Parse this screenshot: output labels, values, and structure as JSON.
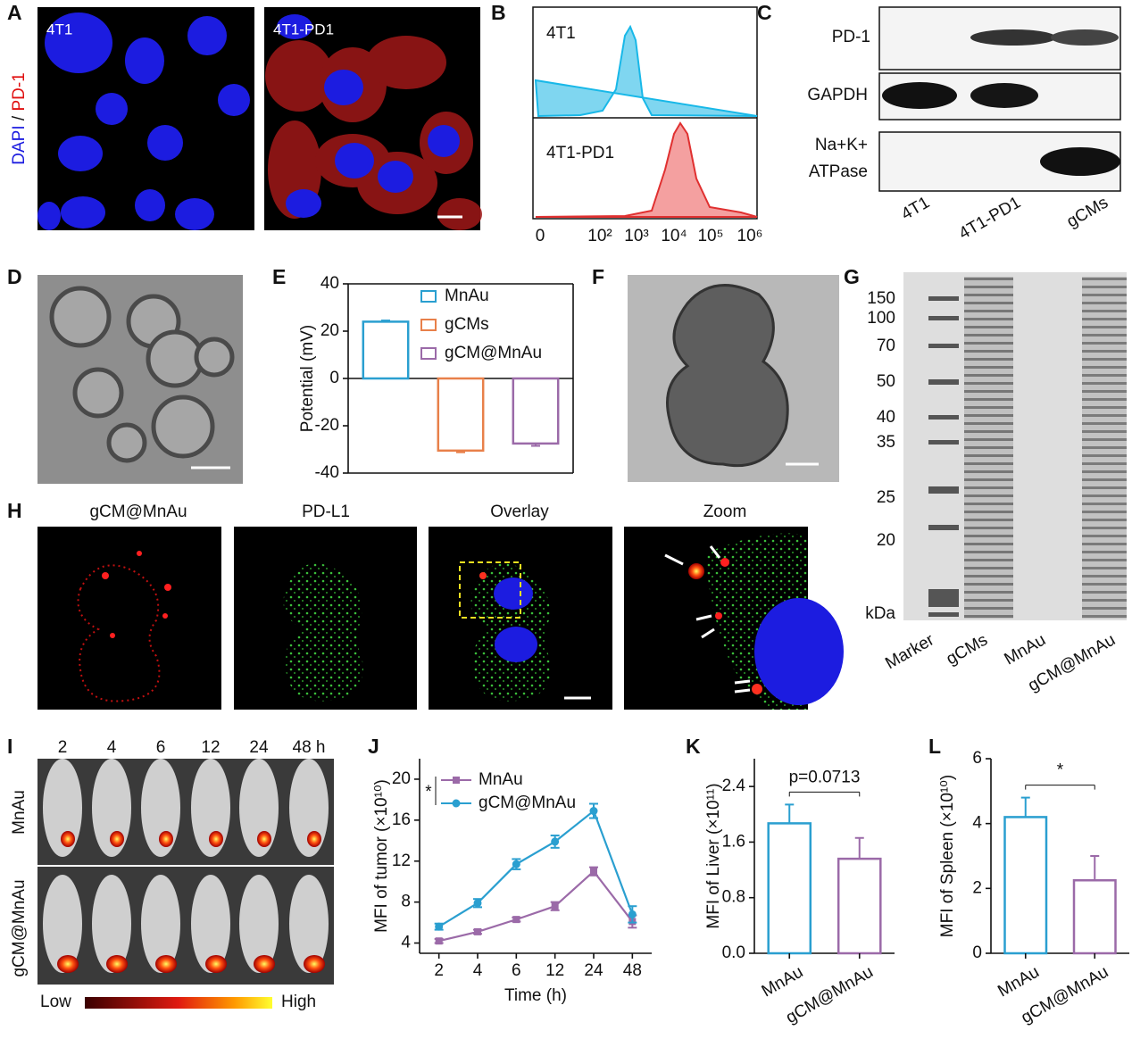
{
  "panel_labels": [
    "A",
    "B",
    "C",
    "D",
    "E",
    "F",
    "G",
    "H",
    "I",
    "J",
    "K",
    "L"
  ],
  "panel_a": {
    "images": [
      "4T1",
      "4T1-PD1"
    ],
    "stain_labels": [
      "DAPI",
      "/",
      "PD-1"
    ]
  },
  "panel_b": {
    "samples": [
      "4T1",
      "4T1-PD1"
    ],
    "xtick_labels": [
      "0",
      "10²",
      "10³",
      "10⁴",
      "10⁵",
      "10⁶"
    ]
  },
  "panel_c": {
    "rows": [
      "PD-1",
      "GAPDH",
      "Na+K+",
      "ATPase"
    ],
    "lanes": [
      "4T1",
      "4T1-PD1",
      "gCMs"
    ]
  },
  "panel_g": {
    "markers": [
      "150",
      "100",
      "70",
      "50",
      "40",
      "35",
      "25",
      "20",
      "kDa"
    ],
    "lanes": [
      "Marker",
      "gCMs",
      "MnAu",
      "gCM@MnAu"
    ]
  },
  "panel_h": {
    "titles": [
      "gCM@MnAu",
      "PD-L1",
      "Overlay",
      "Zoom"
    ]
  },
  "panel_i": {
    "times": [
      "2",
      "4",
      "6",
      "12",
      "24",
      "48 h"
    ],
    "rows": [
      "MnAu",
      "gCM@MnAu"
    ],
    "scale": [
      "Low",
      "High"
    ]
  },
  "chart_data": [
    {
      "type": "bar",
      "ylabel": "Potential (mV)",
      "ylim": [
        -40,
        40
      ],
      "yticks": [
        -40,
        -20,
        0,
        20,
        40
      ],
      "series": [
        {
          "name": "MnAu",
          "color": "#2a9fd0",
          "values": [
            24
          ],
          "errors": [
            0.5
          ]
        },
        {
          "name": "gCMs",
          "color": "#e8804a",
          "values": [
            -30.5
          ],
          "errors": [
            0.7
          ]
        },
        {
          "name": "gCM@MnAu",
          "color": "#9b6aa8",
          "values": [
            -27.5
          ],
          "errors": [
            1
          ]
        }
      ]
    },
    {
      "type": "line",
      "xlabel": "Time (h)",
      "ylabel": "MFI of tumor (×10¹⁰)",
      "categories": [
        "2",
        "4",
        "6",
        "12",
        "24",
        "48"
      ],
      "ylim": [
        3,
        22
      ],
      "yticks": [
        4,
        8,
        12,
        16,
        20
      ],
      "annotation": "*",
      "series": [
        {
          "name": "MnAu",
          "color": "#9b6aa8",
          "marker": "square",
          "values": [
            4.2,
            5.1,
            6.3,
            7.6,
            11.0,
            6.1
          ],
          "errors": [
            0.2,
            0.2,
            0.2,
            0.4,
            0.4,
            0.6
          ]
        },
        {
          "name": "gCM@MnAu",
          "color": "#2a9fd0",
          "marker": "circle",
          "values": [
            5.6,
            7.9,
            11.7,
            13.9,
            16.9,
            6.8
          ],
          "errors": [
            0.3,
            0.4,
            0.5,
            0.6,
            0.7,
            0.8
          ]
        }
      ]
    },
    {
      "type": "bar",
      "ylabel": "MFI of Liver (×10¹¹)",
      "categories": [
        "MnAu",
        "gCM@MnAu"
      ],
      "values": [
        1.87,
        1.36
      ],
      "errors": [
        0.27,
        0.3
      ],
      "colors": [
        "#2a9fd0",
        "#9b6aa8"
      ],
      "ylim": [
        0,
        2.8
      ],
      "yticks": [
        {
          "value": 0,
          "label": "0.0"
        },
        {
          "value": 0.8,
          "label": "0.8"
        },
        {
          "value": 1.6,
          "label": "1.6"
        },
        {
          "value": 2.4,
          "label": "2.4"
        }
      ],
      "annotation": "p=0.0713"
    },
    {
      "type": "bar",
      "ylabel": "MFI of Spleen (×10¹⁰)",
      "categories": [
        "MnAu",
        "gCM@MnAu"
      ],
      "values": [
        4.2,
        2.25
      ],
      "errors": [
        0.6,
        0.75
      ],
      "colors": [
        "#2a9fd0",
        "#9b6aa8"
      ],
      "ylim": [
        0,
        6
      ],
      "yticks": [
        0,
        2,
        4,
        6
      ],
      "annotation": "*"
    }
  ]
}
